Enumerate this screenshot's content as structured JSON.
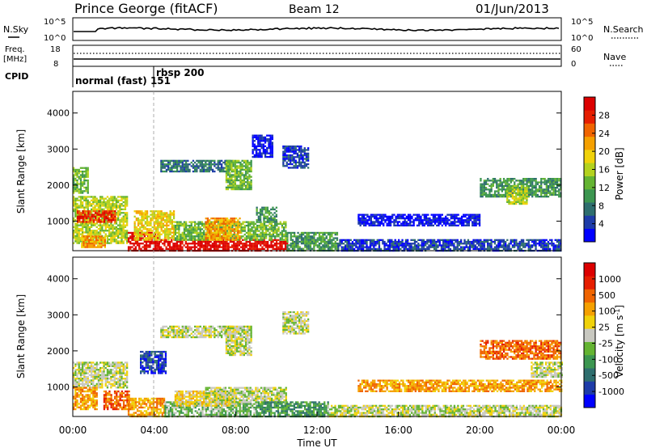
{
  "header": {
    "station": "Prince George (fitACF)",
    "beam": "Beam 12",
    "date": "01/Jun/2013"
  },
  "nsky_panel": {
    "label": "N.Sky",
    "right_label": "N.Search",
    "left_ticks": [
      "10^5",
      "10^0"
    ],
    "right_ticks": [
      "10^5",
      "10^0"
    ]
  },
  "freq_panel": {
    "label_line1": "Freq.",
    "label_line2": "[MHz]",
    "right_label": "Nave",
    "left_ticks": [
      "18",
      "8"
    ],
    "right_ticks": [
      "60",
      "0"
    ]
  },
  "cpid_panel": {
    "label": "CPID",
    "segments": [
      {
        "text": "normal (fast) 151",
        "start_hour": 0
      },
      {
        "text": "rbsp 200",
        "start_hour": 4.0
      }
    ]
  },
  "chart_data": [
    {
      "type": "heatmap",
      "name": "power",
      "ylabel": "Slant Range [km]",
      "ylim": [
        180,
        4600
      ],
      "yticks": [
        1000,
        2000,
        3000,
        4000
      ],
      "xlim": [
        0,
        24
      ],
      "colorbar_label": "Power [dB]",
      "colorbar_ticks": [
        "4",
        "8",
        "12",
        "16",
        "20",
        "24",
        "28"
      ],
      "colorbar_colors": [
        "#0000ff",
        "#1e3ca8",
        "#2e6e6e",
        "#3c9650",
        "#64b432",
        "#b4d21e",
        "#f0d20a",
        "#f5a000",
        "#f06400",
        "#e61e00",
        "#dc0000"
      ],
      "regions": [
        {
          "t0": 0.0,
          "t1": 2.7,
          "r0": 400,
          "r1": 1700,
          "level": 5
        },
        {
          "t0": 0.2,
          "t1": 2.1,
          "r0": 1000,
          "r1": 1300,
          "level": 9
        },
        {
          "t0": 0.0,
          "t1": 0.7,
          "r0": 1800,
          "r1": 2500,
          "level": 4
        },
        {
          "t0": 0.4,
          "t1": 1.6,
          "r0": 300,
          "r1": 600,
          "level": 7
        },
        {
          "t0": 2.7,
          "t1": 4.2,
          "r0": 180,
          "r1": 700,
          "level": 10
        },
        {
          "t0": 4.2,
          "t1": 10.5,
          "r0": 180,
          "r1": 500,
          "level": 10
        },
        {
          "t0": 3.0,
          "t1": 5.0,
          "r0": 500,
          "r1": 1300,
          "level": 6
        },
        {
          "t0": 5.0,
          "t1": 10.5,
          "r0": 500,
          "r1": 1000,
          "level": 4
        },
        {
          "t0": 6.5,
          "t1": 8.2,
          "r0": 500,
          "r1": 1100,
          "level": 7
        },
        {
          "t0": 10.5,
          "t1": 13.0,
          "r0": 180,
          "r1": 700,
          "level": 3
        },
        {
          "t0": 13.0,
          "t1": 24.0,
          "r0": 180,
          "r1": 500,
          "level": 1
        },
        {
          "t0": 14.0,
          "t1": 20.0,
          "r0": 900,
          "r1": 1200,
          "level": 0
        },
        {
          "t0": 9.0,
          "t1": 10.0,
          "r0": 1000,
          "r1": 1400,
          "level": 3
        },
        {
          "t0": 4.3,
          "t1": 7.8,
          "r0": 2400,
          "r1": 2700,
          "level": 2
        },
        {
          "t0": 7.5,
          "t1": 8.8,
          "r0": 1900,
          "r1": 2700,
          "level": 4
        },
        {
          "t0": 10.3,
          "t1": 11.6,
          "r0": 2500,
          "r1": 3100,
          "level": 1
        },
        {
          "t0": 8.8,
          "t1": 9.8,
          "r0": 2800,
          "r1": 3400,
          "level": 0
        },
        {
          "t0": 20.0,
          "t1": 24.0,
          "r0": 1700,
          "r1": 2200,
          "level": 3
        },
        {
          "t0": 21.3,
          "t1": 22.3,
          "r0": 1500,
          "r1": 2000,
          "level": 5
        }
      ]
    },
    {
      "type": "heatmap",
      "name": "velocity",
      "ylabel": "Slant Range [km]",
      "ylim": [
        180,
        4600
      ],
      "yticks": [
        1000,
        2000,
        3000,
        4000
      ],
      "xlim": [
        0,
        24
      ],
      "xticks": [
        "00:00",
        "04:00",
        "08:00",
        "12:00",
        "16:00",
        "20:00",
        "00:00"
      ],
      "xlabel": "Time UT",
      "colorbar_label": "Velocity [m s^-1]",
      "colorbar_ticks": [
        "1000",
        "500",
        "100",
        "25",
        "-25",
        "-100",
        "-500",
        "-1000"
      ],
      "colorbar_colors": [
        "#0000ff",
        "#1e3ca8",
        "#2e6e6e",
        "#3c9650",
        "#64b432",
        "#c8c8c0",
        "#f0d20a",
        "#f5a000",
        "#f06400",
        "#e61e00",
        "#dc0000"
      ],
      "regions": [
        {
          "t0": 0.0,
          "t1": 2.7,
          "r0": 1000,
          "r1": 1700,
          "level": 5
        },
        {
          "t0": 0.0,
          "t1": 1.2,
          "r0": 400,
          "r1": 1000,
          "level": 7
        },
        {
          "t0": 1.5,
          "t1": 2.8,
          "r0": 400,
          "r1": 900,
          "level": 8
        },
        {
          "t0": 2.7,
          "t1": 4.5,
          "r0": 180,
          "r1": 700,
          "level": 7
        },
        {
          "t0": 4.5,
          "t1": 9.0,
          "r0": 180,
          "r1": 600,
          "level": 4
        },
        {
          "t0": 5.0,
          "t1": 8.0,
          "r0": 500,
          "r1": 900,
          "level": 6
        },
        {
          "t0": 6.5,
          "t1": 10.5,
          "r0": 600,
          "r1": 1000,
          "level": 5
        },
        {
          "t0": 9.0,
          "t1": 12.5,
          "r0": 180,
          "r1": 600,
          "level": 3
        },
        {
          "t0": 12.5,
          "t1": 24.0,
          "r0": 180,
          "r1": 500,
          "level": 5
        },
        {
          "t0": 14.0,
          "t1": 24.0,
          "r0": 900,
          "r1": 1200,
          "level": 7
        },
        {
          "t0": 4.3,
          "t1": 7.8,
          "r0": 2400,
          "r1": 2700,
          "level": 5
        },
        {
          "t0": 7.5,
          "t1": 8.8,
          "r0": 1900,
          "r1": 2700,
          "level": 5
        },
        {
          "t0": 10.3,
          "t1": 11.6,
          "r0": 2500,
          "r1": 3100,
          "level": 5
        },
        {
          "t0": 3.3,
          "t1": 4.6,
          "r0": 1400,
          "r1": 2000,
          "level": 1
        },
        {
          "t0": 20.0,
          "t1": 24.0,
          "r0": 1800,
          "r1": 2300,
          "level": 8
        },
        {
          "t0": 22.5,
          "t1": 24.0,
          "r0": 1300,
          "r1": 1700,
          "level": 5
        }
      ]
    }
  ]
}
